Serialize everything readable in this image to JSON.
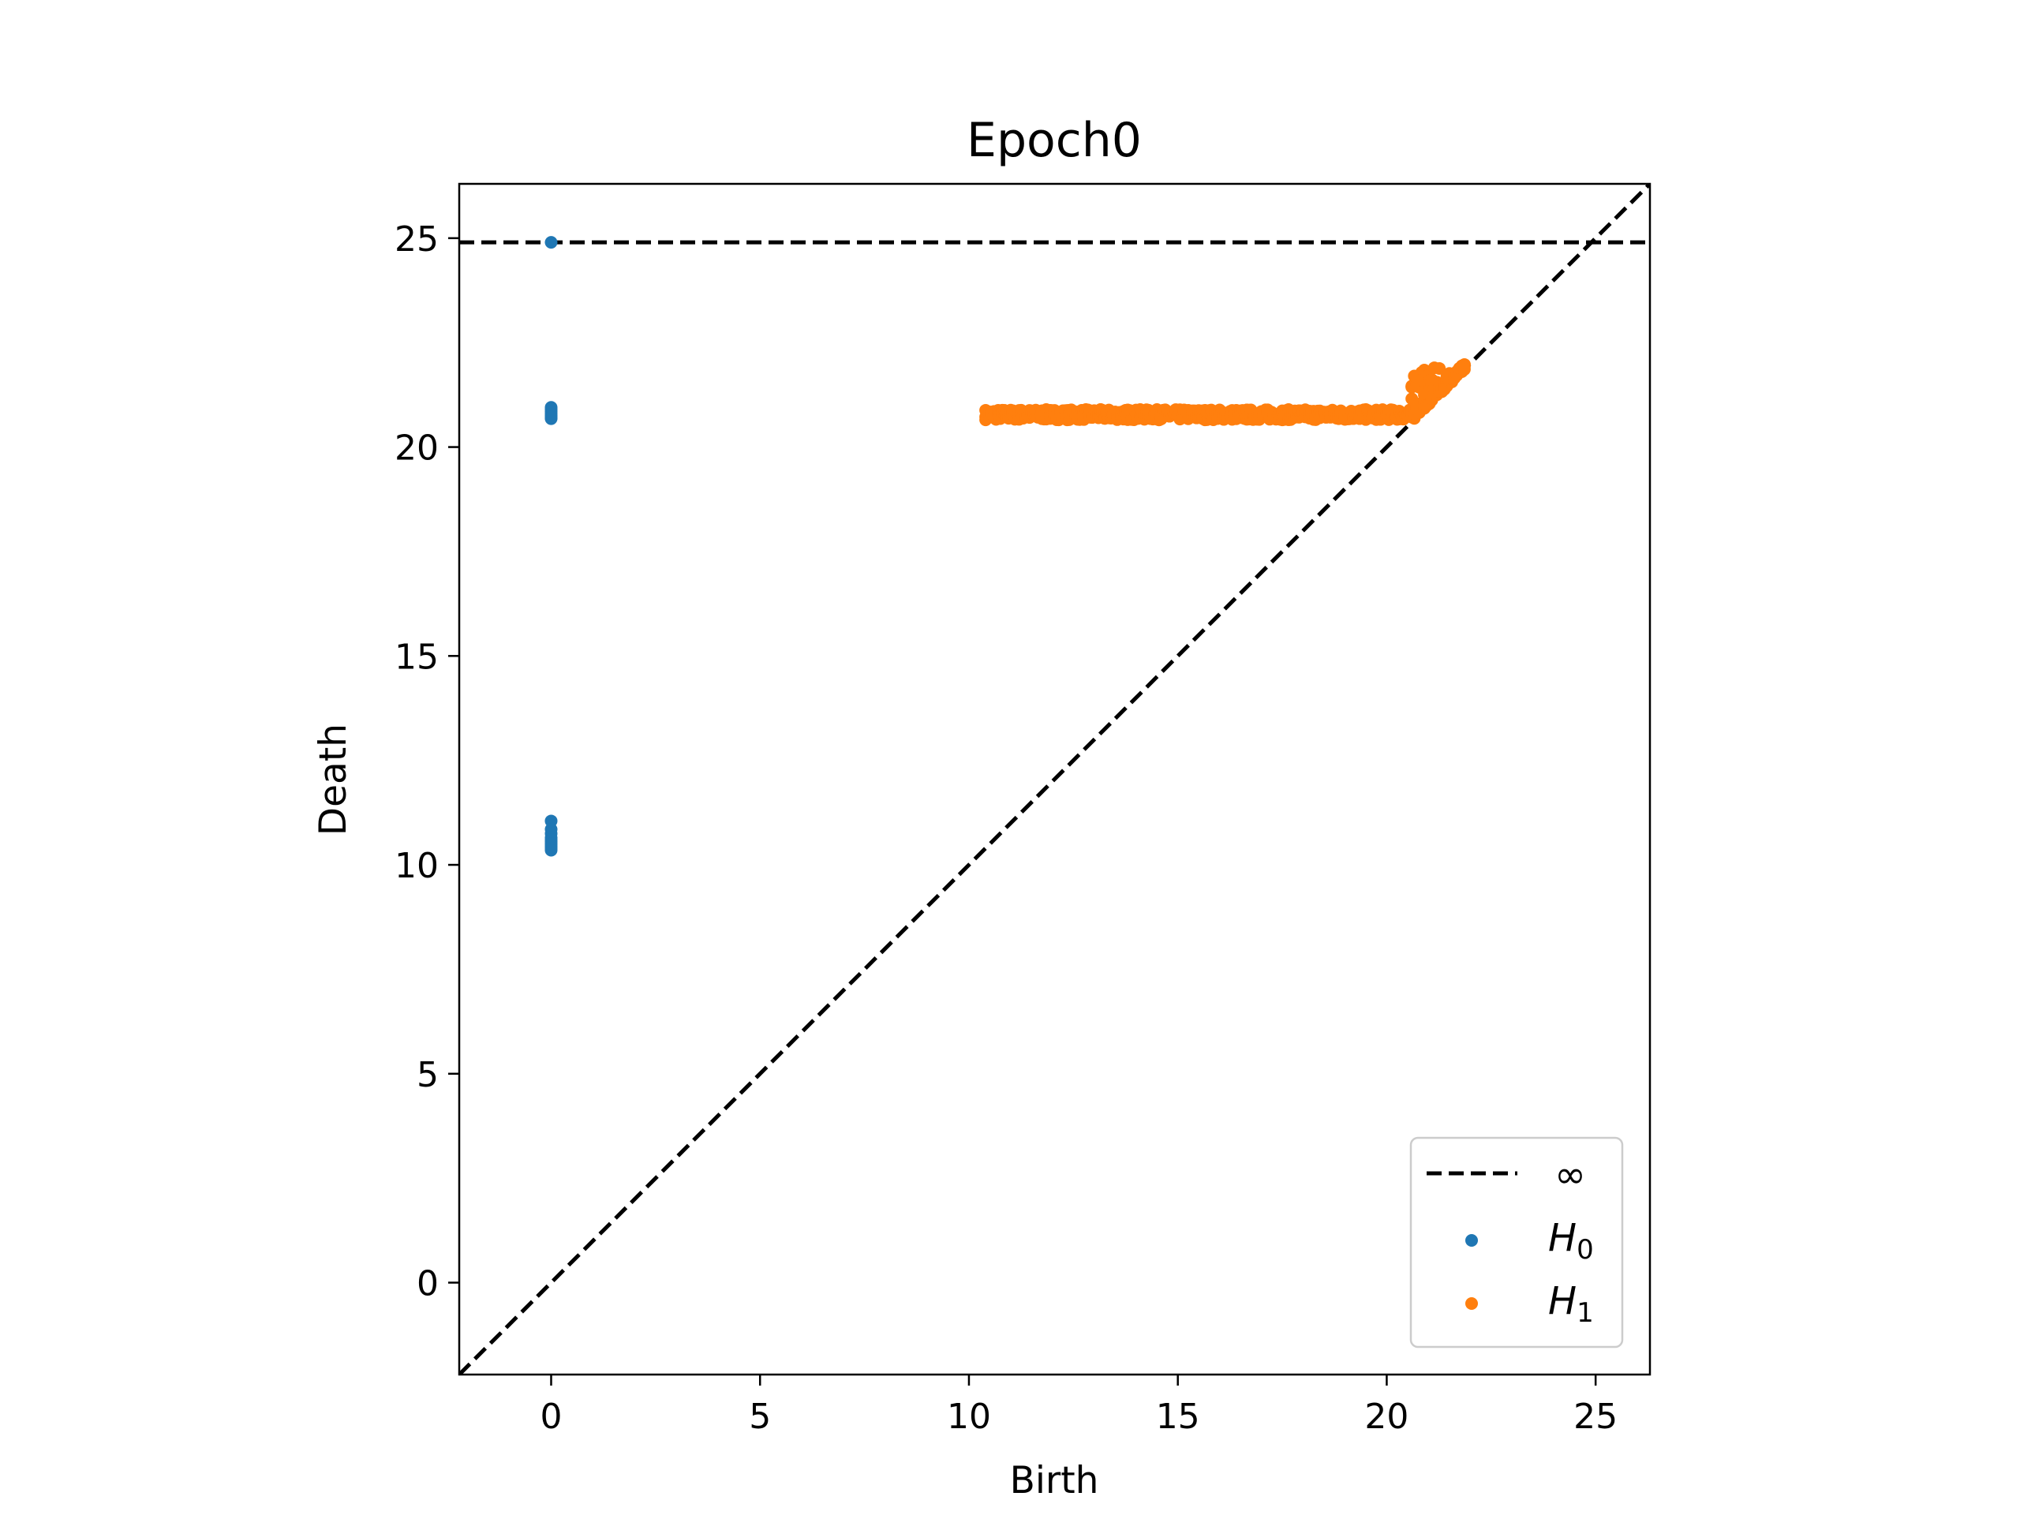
{
  "chart_data": {
    "type": "scatter",
    "title": "Epoch0",
    "xlabel": "Birth",
    "ylabel": "Death",
    "xlim": [
      -2.2,
      26.3
    ],
    "ylim": [
      -2.2,
      26.3
    ],
    "x_ticks": [
      0,
      5,
      10,
      15,
      20,
      25
    ],
    "y_ticks": [
      0,
      5,
      10,
      15,
      20,
      25
    ],
    "grid": false,
    "legend_position": "lower-right",
    "infinity_line": {
      "label": "∞",
      "death": 24.9,
      "style": "dashed",
      "color": "#000000"
    },
    "diagonal": {
      "style": "dashed",
      "color": "#000000"
    },
    "series": [
      {
        "name": "H",
        "subscript": "0",
        "color": "#1f77b4",
        "points": [
          [
            0,
            24.9
          ],
          [
            0,
            20.7
          ],
          [
            0,
            20.75
          ],
          [
            0,
            20.8
          ],
          [
            0,
            20.85
          ],
          [
            0,
            20.9
          ],
          [
            0,
            20.95
          ],
          [
            0,
            20.68
          ],
          [
            0,
            20.72
          ],
          [
            0,
            11.05
          ],
          [
            0,
            10.85
          ],
          [
            0,
            10.75
          ],
          [
            0,
            10.65
          ],
          [
            0,
            10.6
          ],
          [
            0,
            10.55
          ],
          [
            0,
            10.5
          ],
          [
            0,
            10.45
          ],
          [
            0,
            10.4
          ],
          [
            0,
            10.35
          ]
        ]
      },
      {
        "name": "H",
        "subscript": "1",
        "color": "#ff7f0e",
        "segments": [
          {
            "shape": "band",
            "x_from": 10.4,
            "x_to": 20.6,
            "y_low": 20.65,
            "y_high": 20.9,
            "step": 0.05
          },
          {
            "shape": "band",
            "x_from": 20.6,
            "x_to": 21.9,
            "y_low": 20.65,
            "y_high": 21.9,
            "step": 0.06
          }
        ]
      }
    ]
  }
}
